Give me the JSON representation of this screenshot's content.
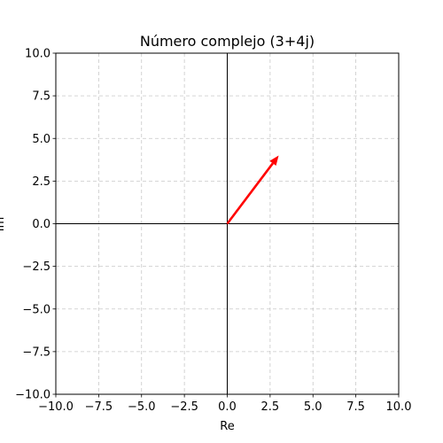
{
  "chart_data": {
    "type": "vector",
    "title": "Número complejo (3+4j)",
    "xlabel": "Re",
    "ylabel": "Im",
    "xlim": [
      -10,
      10
    ],
    "ylim": [
      -10,
      10
    ],
    "xticks": [
      -10.0,
      -7.5,
      -5.0,
      -2.5,
      0.0,
      2.5,
      5.0,
      7.5,
      10.0
    ],
    "yticks": [
      -10.0,
      -7.5,
      -5.0,
      -2.5,
      0.0,
      2.5,
      5.0,
      7.5,
      10.0
    ],
    "xtick_labels": [
      "−10.0",
      "−7.5",
      "−5.0",
      "−2.5",
      "0.0",
      "2.5",
      "5.0",
      "7.5",
      "10.0"
    ],
    "ytick_labels": [
      "−10.0",
      "−7.5",
      "−5.0",
      "−2.5",
      "0.0",
      "2.5",
      "5.0",
      "7.5",
      "10.0"
    ],
    "grid": true,
    "grid_style": "dashed",
    "axis_lines_through_origin": true,
    "vector": {
      "from": [
        0,
        0
      ],
      "to": [
        3,
        4
      ],
      "color": "#ff0000"
    }
  }
}
